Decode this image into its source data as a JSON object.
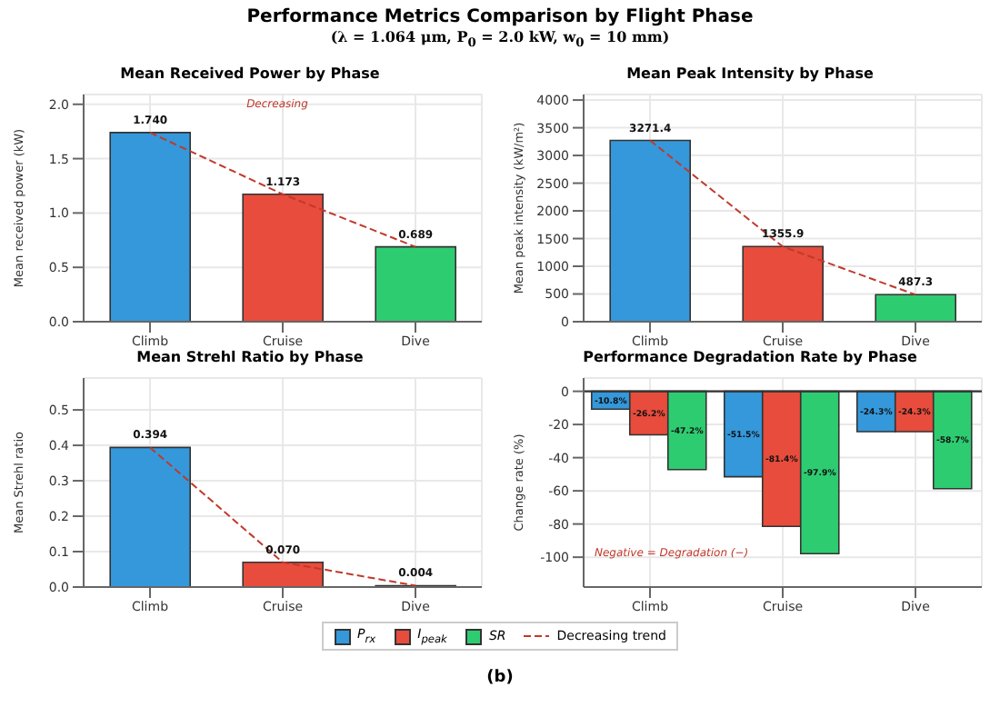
{
  "chart_data": [
    {
      "type": "other",
      "title": "Performance Metrics Comparison by Flight Phase",
      "subtitle": "(λ = 1.064 μm, P$_{0}$ = 2.0 kW, w$_{0}$ = 10 mm)",
      "annotations": [
        "(b)"
      ]
    },
    {
      "type": "bar",
      "title": "Mean Received Power by Phase",
      "ylabel": "Mean received power (kW)",
      "categories": [
        "Climb",
        "Cruise",
        "Dive"
      ],
      "ylim": [
        0,
        2.09
      ],
      "yticks": [
        {
          "value": 0,
          "label": "0.0"
        },
        {
          "value": 0.5,
          "label": "0.5"
        },
        {
          "value": 1,
          "label": "1.0"
        },
        {
          "value": 1.5,
          "label": "1.5"
        },
        {
          "value": 2,
          "label": "2.0"
        }
      ],
      "grid": true,
      "legend": "bottom",
      "annotations": [
        "Decreasing"
      ],
      "series": [
        {
          "type": "bar",
          "colors": [
            "#3498db",
            "#e74c3c",
            "#2ecc71"
          ],
          "values": [
            1.74,
            1.173,
            0.689
          ],
          "value_labels": [
            "1.740",
            "1.173",
            "0.689"
          ]
        },
        {
          "type": "line",
          "name": "Decreasing trend",
          "color": "#c0392b",
          "line_style": "dashed",
          "values": [
            1.74,
            1.173,
            0.689
          ]
        }
      ]
    },
    {
      "type": "bar",
      "title": "Mean Peak Intensity by Phase",
      "ylabel": "Mean peak intensity (kW/m²)",
      "categories": [
        "Climb",
        "Cruise",
        "Dive"
      ],
      "ylim": [
        0,
        4100
      ],
      "yticks": [
        0,
        500,
        1000,
        1500,
        2000,
        2500,
        3000,
        3500,
        4000
      ],
      "grid": true,
      "series": [
        {
          "type": "bar",
          "colors": [
            "#3498db",
            "#e74c3c",
            "#2ecc71"
          ],
          "values": [
            3271.4,
            1355.9,
            487.3
          ],
          "value_labels": [
            "3271.4",
            "1355.9",
            "487.3"
          ]
        },
        {
          "type": "line",
          "color": "#c0392b",
          "line_style": "dashed",
          "values": [
            3271.4,
            1355.9,
            487.3
          ]
        }
      ]
    },
    {
      "type": "bar",
      "title": "Mean Strehl Ratio by Phase",
      "ylabel": "Mean Strehl ratio",
      "categories": [
        "Climb",
        "Cruise",
        "Dive"
      ],
      "ylim": [
        0,
        0.59
      ],
      "yticks": [
        {
          "value": 0,
          "label": "0.0"
        },
        {
          "value": 0.1,
          "label": "0.1"
        },
        {
          "value": 0.2,
          "label": "0.2"
        },
        {
          "value": 0.3,
          "label": "0.3"
        },
        {
          "value": 0.4,
          "label": "0.4"
        },
        {
          "value": 0.5,
          "label": "0.5"
        }
      ],
      "grid": true,
      "series": [
        {
          "type": "bar",
          "colors": [
            "#3498db",
            "#e74c3c",
            "#2ecc71"
          ],
          "values": [
            0.394,
            0.07,
            0.004
          ],
          "value_labels": [
            "0.394",
            "0.070",
            "0.004"
          ]
        },
        {
          "type": "line",
          "color": "#c0392b",
          "line_style": "dashed",
          "values": [
            0.394,
            0.07,
            0.004
          ]
        }
      ]
    },
    {
      "type": "bar",
      "title": "Performance Degradation Rate by Phase",
      "ylabel": "Change rate (%)",
      "categories": [
        "Climb",
        "Cruise",
        "Dive"
      ],
      "ylim": [
        -118,
        8
      ],
      "yticks": [
        0,
        -20,
        -40,
        -60,
        -80,
        -100
      ],
      "grid": true,
      "legend": "bottom",
      "annotations": [
        "Negative = Degradation (−)"
      ],
      "ref_lines": [
        {
          "axis": "y",
          "value": 0,
          "color": "#333333"
        }
      ],
      "series": [
        {
          "name": "P$_{rx}$",
          "color": "#3498db",
          "values": [
            -10.8,
            -51.5,
            -24.3
          ],
          "value_labels": [
            "-10.8%",
            "-51.5%",
            "-24.3%"
          ]
        },
        {
          "name": "I$_{peak}$",
          "color": "#e74c3c",
          "values": [
            -26.2,
            -81.4,
            -24.3
          ],
          "value_labels": [
            "-26.2%",
            "-81.4%",
            "-24.3%"
          ]
        },
        {
          "name": "SR",
          "color": "#2ecc71",
          "values": [
            -47.2,
            -97.9,
            -58.7
          ],
          "value_labels": [
            "-47.2%",
            "-97.9%",
            "-58.7%"
          ]
        }
      ]
    }
  ]
}
